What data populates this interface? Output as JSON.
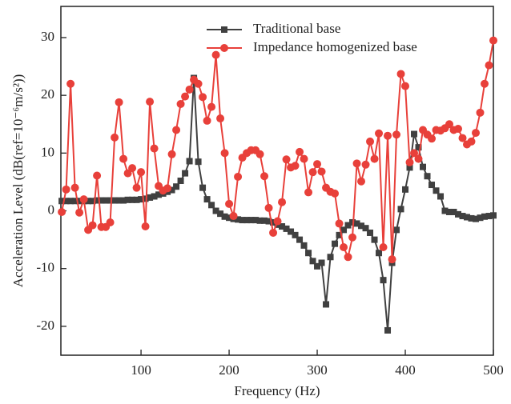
{
  "chart_data": {
    "type": "line",
    "xlabel": "Frequency (Hz)",
    "ylabel": "Acceleration Level (dB(ref=10⁻⁶m/s²))",
    "x": [
      10,
      15,
      20,
      25,
      30,
      35,
      40,
      45,
      50,
      55,
      60,
      65,
      70,
      75,
      80,
      85,
      90,
      95,
      100,
      105,
      110,
      115,
      120,
      125,
      130,
      135,
      140,
      145,
      150,
      155,
      160,
      165,
      170,
      175,
      180,
      185,
      190,
      195,
      200,
      205,
      210,
      215,
      220,
      225,
      230,
      235,
      240,
      245,
      250,
      255,
      260,
      265,
      270,
      275,
      280,
      285,
      290,
      295,
      300,
      305,
      310,
      315,
      320,
      325,
      330,
      335,
      340,
      345,
      350,
      355,
      360,
      365,
      370,
      375,
      380,
      385,
      390,
      395,
      400,
      405,
      410,
      415,
      420,
      425,
      430,
      435,
      440,
      445,
      450,
      455,
      460,
      465,
      470,
      475,
      480,
      485,
      490,
      495,
      500
    ],
    "series": [
      {
        "name": "Traditional base",
        "color": "#404040",
        "marker": "square",
        "values": [
          1.7,
          1.7,
          1.7,
          1.7,
          1.7,
          1.7,
          1.7,
          1.7,
          1.8,
          1.8,
          1.8,
          1.8,
          1.8,
          1.8,
          1.8,
          1.9,
          1.9,
          1.9,
          2.0,
          2.1,
          2.3,
          2.5,
          2.8,
          3.0,
          3.3,
          3.6,
          4.2,
          5.2,
          6.5,
          8.6,
          23,
          8.5,
          4,
          2,
          1,
          0,
          -0.5,
          -1,
          -1.2,
          -1.4,
          -1.5,
          -1.6,
          -1.6,
          -1.6,
          -1.6,
          -1.7,
          -1.7,
          -1.8,
          -2,
          -2.4,
          -2.7,
          -3.1,
          -3.6,
          -4.2,
          -5,
          -6,
          -7.3,
          -8.7,
          -9.6,
          -9,
          -16.2,
          -8,
          -5.7,
          -4.2,
          -3.3,
          -2.5,
          -2,
          -2.2,
          -2.6,
          -3,
          -3.8,
          -5,
          -7.3,
          -12,
          -20.7,
          -9,
          -3.3,
          0.3,
          3.7,
          7.5,
          13.3,
          11,
          7.6,
          6,
          4.5,
          3.5,
          2.5,
          0,
          -0.2,
          -0.2,
          -0.6,
          -0.9,
          -1.1,
          -1.3,
          -1.4,
          -1.2,
          -1,
          -0.9,
          -0.8
        ]
      },
      {
        "name": "Impedance homogenized base",
        "color": "#e8403a",
        "marker": "circle",
        "values": [
          -0.2,
          3.7,
          22,
          4,
          -0.3,
          2,
          -3.3,
          -2.5,
          6.1,
          -2.8,
          -2.8,
          -2,
          12.7,
          18.8,
          9,
          6.5,
          7.4,
          4,
          6.7,
          -2.7,
          18.9,
          10.8,
          4.3,
          3.5,
          3.9,
          9.8,
          14,
          18.5,
          19.8,
          21,
          22.7,
          22,
          19.7,
          15.6,
          18,
          27,
          16,
          10,
          1.2,
          -0.9,
          5.9,
          9.2,
          10,
          10.5,
          10.5,
          9.8,
          6,
          0.5,
          -3.8,
          -1.8,
          1.5,
          8.9,
          7.5,
          7.8,
          10.2,
          9,
          3.2,
          6.7,
          8.1,
          6.8,
          4,
          3.3,
          3,
          -2.2,
          -6.3,
          -8,
          -4.6,
          8.2,
          5.1,
          8,
          12,
          9,
          13.4,
          -6.3,
          13,
          -8.4,
          13.2,
          23.7,
          21.6,
          8.4,
          10,
          9,
          14,
          13.2,
          12.5,
          14,
          13.9,
          14.3,
          15,
          14,
          14.2,
          12.6,
          11.5,
          12,
          13.5,
          17,
          22,
          25.2,
          29.5
        ]
      }
    ],
    "xlim": [
      9,
      500
    ],
    "xticks": [
      100,
      200,
      300,
      400,
      500
    ],
    "ylim": [
      -25,
      35.4
    ],
    "yticks": [
      -20,
      -10,
      0,
      10,
      20,
      30
    ],
    "legend": "top"
  }
}
